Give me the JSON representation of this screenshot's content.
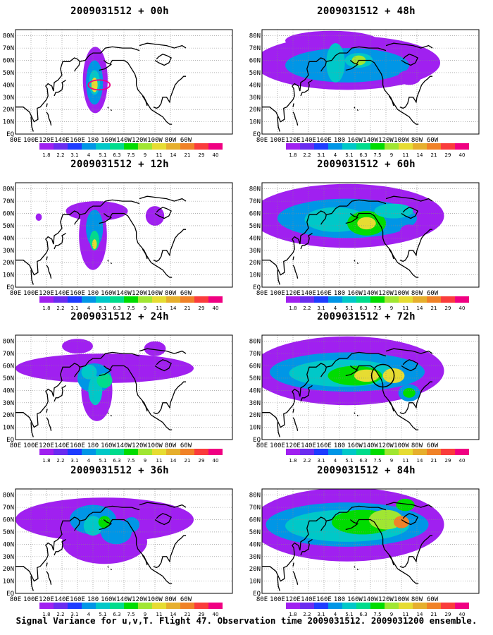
{
  "caption": "Signal Variance for u,v,T. Flight 47. Observation time 2009031512. 2009031200 ensemble.",
  "lat_labels": [
    "80N",
    "70N",
    "60N",
    "50N",
    "40N",
    "30N",
    "20N",
    "10N",
    "EQ"
  ],
  "lon_labels": [
    "80E",
    "100E",
    "120E",
    "140E",
    "160E",
    "180",
    "160W",
    "140W",
    "120W",
    "100W",
    "80W",
    "60W"
  ],
  "colorbar": {
    "labels": [
      "1.8",
      "2.2",
      "3.1",
      "4",
      "5.1",
      "6.3",
      "7.5",
      "9",
      "11",
      "14",
      "21",
      "29",
      "40"
    ],
    "colors": [
      "#a020f0",
      "#6a2cf0",
      "#1e3cff",
      "#0096e6",
      "#00c8c8",
      "#00dc8c",
      "#00dc00",
      "#a0e632",
      "#e6dc32",
      "#e6af2d",
      "#f08228",
      "#fa3c3c",
      "#f00082"
    ]
  },
  "panels": [
    {
      "id": "p00",
      "title": "2009031512 + 00h"
    },
    {
      "id": "p48",
      "title": "2009031512 + 48h"
    },
    {
      "id": "p12",
      "title": "2009031512 + 12h"
    },
    {
      "id": "p60",
      "title": "2009031512 + 60h"
    },
    {
      "id": "p24",
      "title": "2009031512 + 24h"
    },
    {
      "id": "p72",
      "title": "2009031512 + 72h"
    },
    {
      "id": "p36",
      "title": "2009031512 + 36h"
    },
    {
      "id": "p84",
      "title": "2009031512 + 84h"
    }
  ]
}
